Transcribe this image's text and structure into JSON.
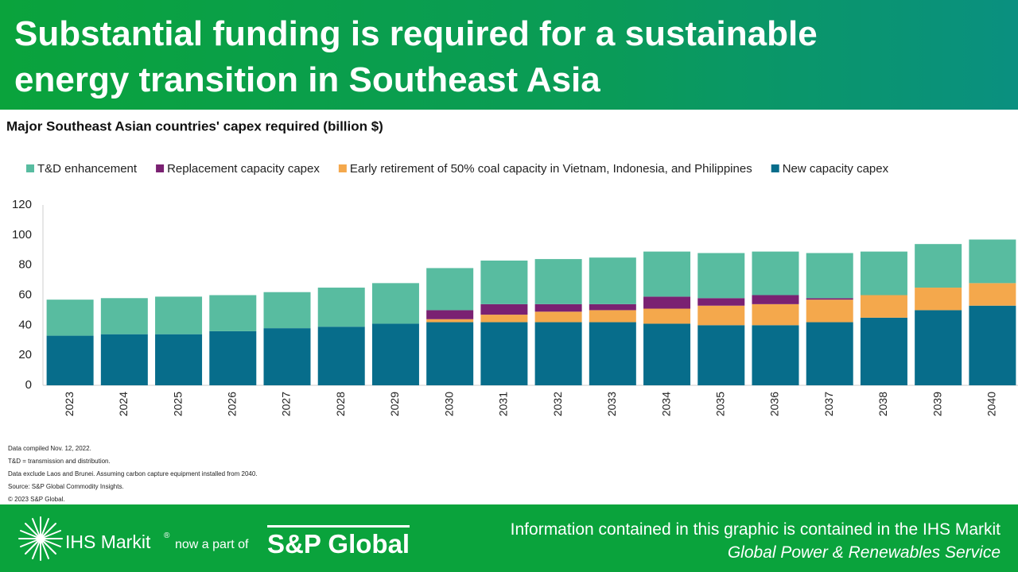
{
  "header": {
    "title": "Substantial funding is required for a sustainable energy transition in Southeast Asia"
  },
  "chart_data": {
    "type": "stacked-bar",
    "title": "Major Southeast Asian countries' capex required (billion $)",
    "categories": [
      "2023",
      "2024",
      "2025",
      "2026",
      "2027",
      "2028",
      "2029",
      "2030",
      "2031",
      "2032",
      "2033",
      "2034",
      "2035",
      "2036",
      "2037",
      "2038",
      "2039",
      "2040"
    ],
    "series": [
      {
        "name": "New capacity capex",
        "color": "#076d8b",
        "values": [
          33,
          34,
          34,
          36,
          38,
          39,
          41,
          42,
          42,
          42,
          42,
          41,
          40,
          40,
          42,
          45,
          50,
          53
        ]
      },
      {
        "name": "Early retirement of 50% coal capacity in Vietnam, Indonesia, and Philippines",
        "color": "#f4a84c",
        "values": [
          0,
          0,
          0,
          0,
          0,
          0,
          0,
          2,
          5,
          7,
          8,
          10,
          13,
          14,
          15,
          15,
          15,
          15
        ]
      },
      {
        "name": "Replacement capacity capex",
        "color": "#7a2172",
        "values": [
          0,
          0,
          0,
          0,
          0,
          0,
          0,
          6,
          7,
          5,
          4,
          8,
          5,
          6,
          1,
          0,
          0,
          0
        ]
      },
      {
        "name": "T&D enhancement",
        "color": "#58bca0",
        "values": [
          24,
          24,
          25,
          24,
          24,
          26,
          27,
          28,
          29,
          30,
          31,
          30,
          30,
          29,
          30,
          29,
          29,
          29
        ]
      }
    ],
    "ylim": [
      0,
      120
    ],
    "yticks": [
      0,
      20,
      40,
      60,
      80,
      100,
      120
    ]
  },
  "footnotes": [
    "Data compiled Nov. 12, 2022.",
    "T&D = transmission and distribution.",
    "Data exclude Laos and Brunei. Assuming carbon capture equipment installed from 2040.",
    "Source: S&P Global Commodity Insights.",
    "© 2023 S&P Global."
  ],
  "footer": {
    "brand": "IHS Markit",
    "registered": "®",
    "connector": "now a part of",
    "partner": "S&P Global",
    "note_line1": "Information contained in this graphic is contained in the IHS Markit",
    "note_line2": "Global Power & Renewables Service"
  }
}
